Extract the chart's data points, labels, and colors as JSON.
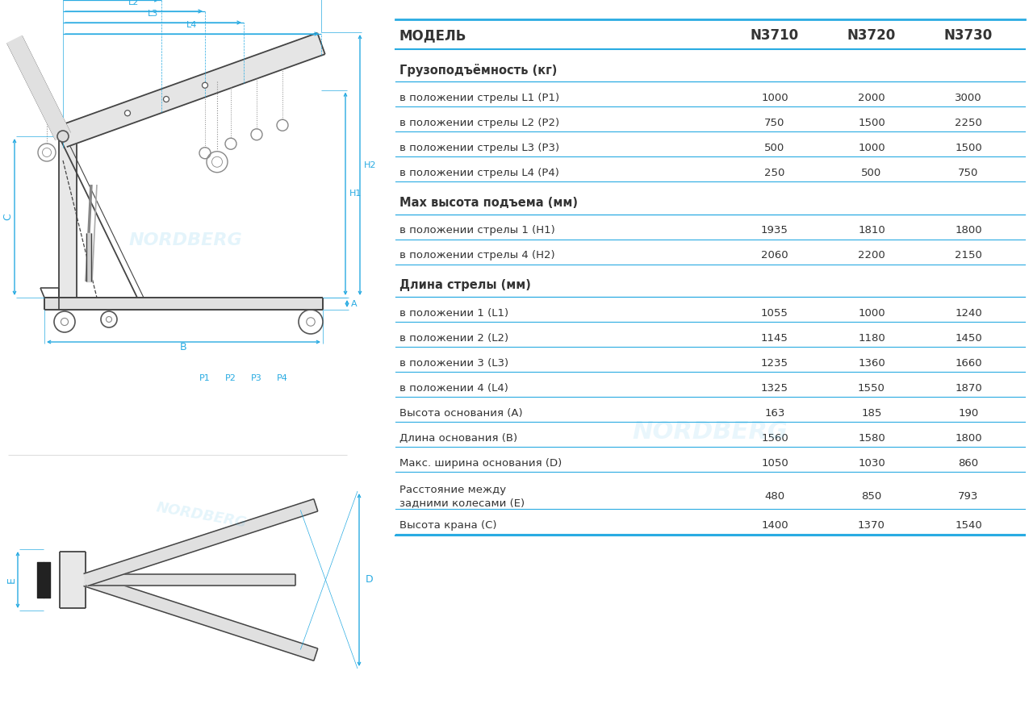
{
  "bg_color": "#ffffff",
  "cyan": "#29ABE2",
  "dark": "#333333",
  "gray": "#666666",
  "light_gray": "#aaaaaa",
  "header_row": {
    "label": "МОДЕЛЬ",
    "cols": [
      "N3710",
      "N3720",
      "N3730"
    ]
  },
  "sections": [
    {
      "header": "Грузоподъёмность (кг)",
      "rows": [
        {
          "label": "в положении стрелы L1 (P1)",
          "vals": [
            "1000",
            "2000",
            "3000"
          ]
        },
        {
          "label": "в положении стрелы L2 (P2)",
          "vals": [
            "750",
            "1500",
            "2250"
          ]
        },
        {
          "label": "в положении стрелы L3 (P3)",
          "vals": [
            "500",
            "1000",
            "1500"
          ]
        },
        {
          "label": "в положении стрелы L4 (P4)",
          "vals": [
            "250",
            "500",
            "750"
          ]
        }
      ]
    },
    {
      "header": "Мах высота подъема (мм)",
      "rows": [
        {
          "label": "в положении стрелы 1 (H1)",
          "vals": [
            "1935",
            "1810",
            "1800"
          ]
        },
        {
          "label": "в положении стрелы 4 (H2)",
          "vals": [
            "2060",
            "2200",
            "2150"
          ]
        }
      ]
    },
    {
      "header": "Длина стрелы (мм)",
      "rows": [
        {
          "label": "в положении 1 (L1)",
          "vals": [
            "1055",
            "1000",
            "1240"
          ]
        },
        {
          "label": "в положении 2 (L2)",
          "vals": [
            "1145",
            "1180",
            "1450"
          ]
        },
        {
          "label": "в положении 3 (L3)",
          "vals": [
            "1235",
            "1360",
            "1660"
          ]
        },
        {
          "label": "в положении 4 (L4)",
          "vals": [
            "1325",
            "1550",
            "1870"
          ]
        },
        {
          "label": "Высота основания (А)",
          "vals": [
            "163",
            "185",
            "190"
          ]
        },
        {
          "label": "Длина основания (В)",
          "vals": [
            "1560",
            "1580",
            "1800"
          ]
        },
        {
          "label": "Макс. ширина основания (D)",
          "vals": [
            "1050",
            "1030",
            "860"
          ]
        },
        {
          "label": "Расстояние между\nзадними колесами (E)",
          "vals": [
            "480",
            "850",
            "793"
          ]
        },
        {
          "label": "Высота крана (С)",
          "vals": [
            "1400",
            "1370",
            "1540"
          ]
        }
      ]
    }
  ]
}
